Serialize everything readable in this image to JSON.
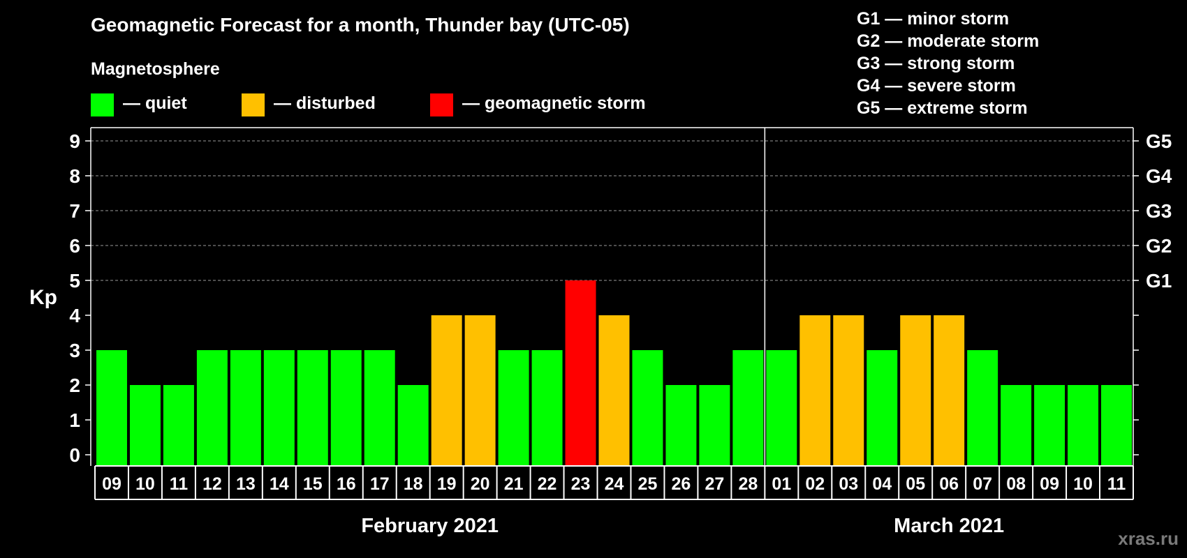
{
  "title": "Geomagnetic Forecast for a month, Thunder bay (UTC-05)",
  "magnetosphere_label": "Magnetosphere",
  "legend": [
    {
      "label": "— quiet",
      "color": "#00ff00"
    },
    {
      "label": "— disturbed",
      "color": "#ffc000"
    },
    {
      "label": "— geomagnetic storm",
      "color": "#ff0000"
    }
  ],
  "g_scale": [
    "G1 — minor storm",
    "G2 — moderate storm",
    "G3 — strong storm",
    "G4 — severe storm",
    "G5 — extreme storm"
  ],
  "watermark": "xras.ru",
  "chart_data": {
    "type": "bar",
    "ylabel": "Kp",
    "ylim": [
      0,
      9
    ],
    "yticks": [
      0,
      1,
      2,
      3,
      4,
      5,
      6,
      7,
      8,
      9
    ],
    "right_tick_labels": [
      {
        "value": 5,
        "label": "G1"
      },
      {
        "value": 6,
        "label": "G2"
      },
      {
        "value": 7,
        "label": "G3"
      },
      {
        "value": 8,
        "label": "G4"
      },
      {
        "value": 9,
        "label": "G5"
      }
    ],
    "grid": "horizontal dashed from 5 to 9",
    "categories": [
      "09",
      "10",
      "11",
      "12",
      "13",
      "14",
      "15",
      "16",
      "17",
      "18",
      "19",
      "20",
      "21",
      "22",
      "23",
      "24",
      "25",
      "26",
      "27",
      "28",
      "01",
      "02",
      "03",
      "04",
      "05",
      "06",
      "07",
      "08",
      "09",
      "10",
      "11"
    ],
    "values": [
      3,
      2,
      2,
      3,
      3,
      3,
      3,
      3,
      3,
      2,
      4,
      4,
      3,
      3,
      5,
      4,
      3,
      2,
      2,
      3,
      3,
      4,
      4,
      3,
      4,
      4,
      3,
      2,
      2,
      2,
      2
    ],
    "color_rule": {
      "quiet_max": 3,
      "disturbed_max": 4
    },
    "months": [
      {
        "label": "February 2021",
        "start_index": 0,
        "end_index": 19
      },
      {
        "label": "March 2021",
        "start_index": 20,
        "end_index": 30
      }
    ]
  }
}
